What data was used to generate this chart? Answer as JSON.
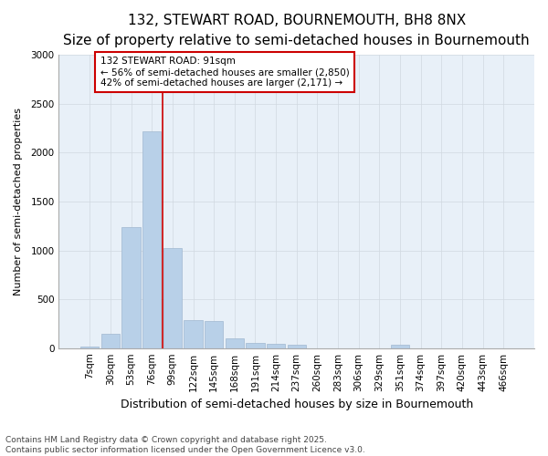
{
  "title_line1": "132, STEWART ROAD, BOURNEMOUTH, BH8 8NX",
  "title_line2": "Size of property relative to semi-detached houses in Bournemouth",
  "xlabel": "Distribution of semi-detached houses by size in Bournemouth",
  "ylabel": "Number of semi-detached properties",
  "categories": [
    "7sqm",
    "30sqm",
    "53sqm",
    "76sqm",
    "99sqm",
    "122sqm",
    "145sqm",
    "168sqm",
    "191sqm",
    "214sqm",
    "237sqm",
    "260sqm",
    "283sqm",
    "306sqm",
    "329sqm",
    "351sqm",
    "374sqm",
    "397sqm",
    "420sqm",
    "443sqm",
    "466sqm"
  ],
  "values": [
    15,
    150,
    1240,
    2220,
    1020,
    290,
    280,
    100,
    55,
    45,
    35,
    0,
    0,
    0,
    0,
    30,
    0,
    0,
    0,
    0,
    0
  ],
  "bar_color": "#b8d0e8",
  "bar_edge_color": "#a0b8d0",
  "grid_color": "#d0d8e0",
  "background_color": "#e8f0f8",
  "vline_color": "#cc0000",
  "vline_x": 4.0,
  "annotation_text": "132 STEWART ROAD: 91sqm\n← 56% of semi-detached houses are smaller (2,850)\n42% of semi-detached houses are larger (2,171) →",
  "annotation_box_color": "#ffffff",
  "annotation_box_edge": "#cc0000",
  "ylim": [
    0,
    3000
  ],
  "yticks": [
    0,
    500,
    1000,
    1500,
    2000,
    2500,
    3000
  ],
  "footnote1": "Contains HM Land Registry data © Crown copyright and database right 2025.",
  "footnote2": "Contains public sector information licensed under the Open Government Licence v3.0.",
  "title1_fontsize": 11,
  "title2_fontsize": 9.5,
  "xlabel_fontsize": 9,
  "ylabel_fontsize": 8,
  "tick_fontsize": 7.5,
  "annot_fontsize": 7.5,
  "footnote_fontsize": 6.5
}
